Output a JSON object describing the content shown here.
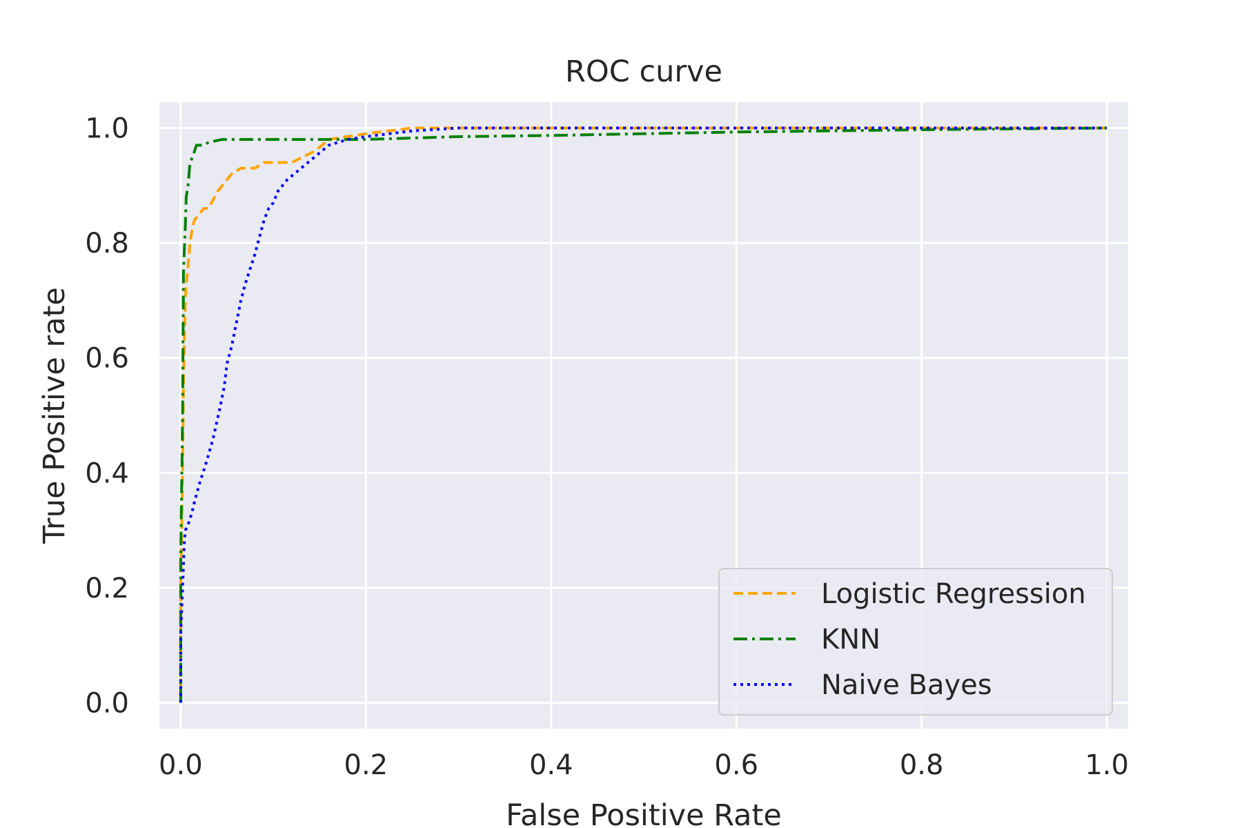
{
  "chart_data": {
    "type": "line",
    "title": "ROC curve",
    "xlabel": "False Positive Rate",
    "ylabel": "True Positive rate",
    "xlim": [
      -0.023,
      1.023
    ],
    "ylim": [
      -0.045,
      1.045
    ],
    "xticks": [
      "0.0",
      "0.2",
      "0.4",
      "0.6",
      "0.8",
      "1.0"
    ],
    "yticks": [
      "0.0",
      "0.2",
      "0.4",
      "0.6",
      "0.8",
      "1.0"
    ],
    "grid": true,
    "background": "#eaeaf2",
    "legend_position": "lower right",
    "series": [
      {
        "name": "Logistic Regression",
        "color": "#ffa500",
        "dash": "dashed",
        "x": [
          0.0,
          0.0,
          0.002,
          0.003,
          0.004,
          0.005,
          0.006,
          0.008,
          0.01,
          0.013,
          0.015,
          0.02,
          0.025,
          0.03,
          0.04,
          0.045,
          0.055,
          0.065,
          0.08,
          0.09,
          0.12,
          0.145,
          0.16,
          0.2,
          0.25,
          0.3,
          0.5,
          0.7,
          1.0
        ],
        "y": [
          0.0,
          0.2,
          0.4,
          0.55,
          0.63,
          0.7,
          0.73,
          0.76,
          0.8,
          0.83,
          0.84,
          0.85,
          0.86,
          0.86,
          0.89,
          0.9,
          0.92,
          0.93,
          0.93,
          0.94,
          0.94,
          0.96,
          0.98,
          0.99,
          1.0,
          1.0,
          1.0,
          1.0,
          1.0
        ]
      },
      {
        "name": "KNN",
        "color": "#008000",
        "dash": "dashdot",
        "x": [
          0.0,
          0.0,
          0.002,
          0.003,
          0.005,
          0.006,
          0.008,
          0.01,
          0.013,
          0.015,
          0.017,
          0.025,
          0.03,
          0.045,
          0.06,
          0.1,
          0.15,
          0.2,
          0.3,
          0.4,
          0.5,
          0.6,
          0.8,
          1.0
        ],
        "y": [
          0.0,
          0.25,
          0.5,
          0.75,
          0.83,
          0.88,
          0.9,
          0.94,
          0.95,
          0.96,
          0.97,
          0.97,
          0.975,
          0.98,
          0.98,
          0.98,
          0.98,
          0.98,
          0.985,
          0.987,
          0.99,
          0.993,
          0.997,
          1.0
        ]
      },
      {
        "name": "Naive Bayes",
        "color": "#0000ff",
        "dash": "dotted",
        "x": [
          0.0,
          0.0,
          0.002,
          0.004,
          0.005,
          0.008,
          0.012,
          0.015,
          0.02,
          0.028,
          0.035,
          0.042,
          0.047,
          0.05,
          0.055,
          0.06,
          0.065,
          0.07,
          0.08,
          0.085,
          0.09,
          0.095,
          0.1,
          0.105,
          0.115,
          0.13,
          0.145,
          0.16,
          0.18,
          0.2,
          0.25,
          0.3,
          0.5,
          0.7,
          1.0
        ],
        "y": [
          0.0,
          0.12,
          0.2,
          0.28,
          0.3,
          0.31,
          0.33,
          0.35,
          0.38,
          0.42,
          0.46,
          0.51,
          0.55,
          0.59,
          0.62,
          0.66,
          0.7,
          0.73,
          0.78,
          0.81,
          0.84,
          0.86,
          0.87,
          0.89,
          0.91,
          0.93,
          0.95,
          0.97,
          0.98,
          0.985,
          0.995,
          1.0,
          1.0,
          1.0,
          1.0
        ]
      }
    ]
  }
}
